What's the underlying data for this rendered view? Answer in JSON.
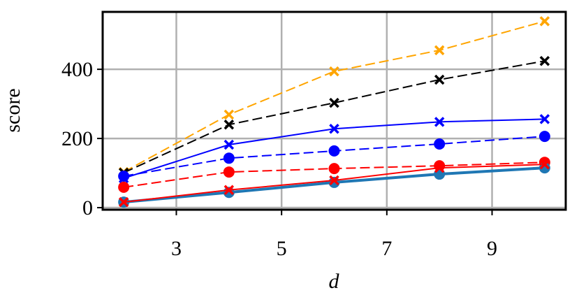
{
  "chart_data": {
    "type": "line",
    "xlabel": "d",
    "ylabel": "score",
    "x": [
      2,
      4,
      6,
      8,
      10
    ],
    "xlim": [
      1.6,
      10.4
    ],
    "ylim": [
      -6,
      566
    ],
    "xticks": [
      3,
      5,
      7,
      9
    ],
    "yticks": [
      0,
      200,
      400
    ],
    "grid": true,
    "series": [
      {
        "color": "#ffa500",
        "linestyle": "dashed",
        "marker": "x",
        "linewidth": 2,
        "values": [
          103,
          269,
          394,
          455,
          539
        ]
      },
      {
        "color": "#000000",
        "linestyle": "dashed",
        "marker": "x",
        "linewidth": 2,
        "values": [
          101,
          240,
          303,
          370,
          424
        ]
      },
      {
        "color": "#0000ff",
        "linestyle": "solid",
        "marker": "x",
        "linewidth": 2,
        "values": [
          85,
          182,
          228,
          248,
          256
        ]
      },
      {
        "color": "#0000ff",
        "linestyle": "dashed",
        "marker": "o",
        "linewidth": 2,
        "values": [
          91,
          143,
          164,
          184,
          206
        ]
      },
      {
        "color": "#ff0000",
        "linestyle": "dashed",
        "marker": "o",
        "linewidth": 2,
        "values": [
          59,
          103,
          113,
          121,
          131
        ]
      },
      {
        "color": "#1f77b4",
        "linestyle": "solid",
        "marker": "o",
        "linewidth": 4,
        "values": [
          16,
          44,
          73,
          97,
          115
        ]
      },
      {
        "color": "#ff0000",
        "linestyle": "solid",
        "marker": "x",
        "linewidth": 2,
        "values": [
          16,
          51,
          79,
          115,
          125
        ]
      }
    ]
  }
}
